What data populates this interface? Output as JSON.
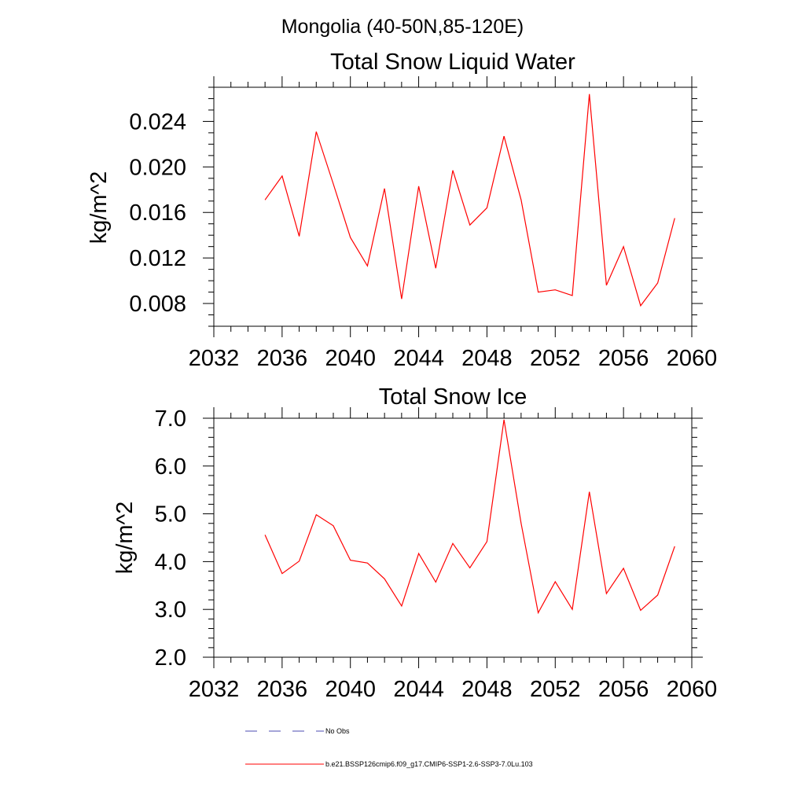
{
  "suptitle": "Mongolia (40-50N,85-120E)",
  "colors": {
    "model": "#ff0000",
    "obs": "#4b4bb0",
    "axis": "#000000"
  },
  "legend": {
    "items": [
      {
        "label": "No Obs",
        "style": "dashed",
        "color": "#4b4bb0"
      },
      {
        "label": "b.e21.BSSP126cmip6.f09_g17.CMIP6-SSP1-2.6-SSP3-7.0Lu.103",
        "style": "solid",
        "color": "#ff0000"
      }
    ]
  },
  "chart_data": [
    {
      "type": "line",
      "title": "Total Snow Liquid Water",
      "xlabel": "",
      "ylabel": "kg/m^2",
      "xlim": [
        2032,
        2060
      ],
      "ylim": [
        0.006,
        0.027
      ],
      "xticks": [
        "2032",
        "2036",
        "2040",
        "2044",
        "2048",
        "2052",
        "2056",
        "2060"
      ],
      "yticks": [
        "0.008",
        "0.012",
        "0.016",
        "0.020",
        "0.024"
      ],
      "x": [
        2035,
        2036,
        2037,
        2038,
        2039,
        2040,
        2041,
        2042,
        2043,
        2044,
        2045,
        2046,
        2047,
        2048,
        2049,
        2050,
        2051,
        2052,
        2053,
        2054,
        2055,
        2056,
        2057,
        2058,
        2059
      ],
      "series": [
        {
          "values": [
            0.0171,
            0.0192,
            0.0139,
            0.0231,
            0.0185,
            0.0138,
            0.0113,
            0.0181,
            0.0084,
            0.0183,
            0.0111,
            0.0197,
            0.0149,
            0.0164,
            0.0227,
            0.0171,
            0.009,
            0.0092,
            0.0087,
            0.0264,
            0.0096,
            0.013,
            0.0078,
            0.0098,
            0.0155
          ]
        }
      ]
    },
    {
      "type": "line",
      "title": "Total Snow Ice",
      "xlabel": "",
      "ylabel": "kg/m^2",
      "xlim": [
        2032,
        2060
      ],
      "ylim": [
        2.0,
        7.0
      ],
      "xticks": [
        "2032",
        "2036",
        "2040",
        "2044",
        "2048",
        "2052",
        "2056",
        "2060"
      ],
      "yticks": [
        "2.0",
        "3.0",
        "4.0",
        "5.0",
        "6.0",
        "7.0"
      ],
      "x": [
        2035,
        2036,
        2037,
        2038,
        2039,
        2040,
        2041,
        2042,
        2043,
        2044,
        2045,
        2046,
        2047,
        2048,
        2049,
        2050,
        2051,
        2052,
        2053,
        2054,
        2055,
        2056,
        2057,
        2058,
        2059
      ],
      "series": [
        {
          "values": [
            4.56,
            3.75,
            4.01,
            4.98,
            4.75,
            4.03,
            3.97,
            3.64,
            3.07,
            4.17,
            3.57,
            4.38,
            3.87,
            4.42,
            6.97,
            4.8,
            2.93,
            3.58,
            3.0,
            5.46,
            3.33,
            3.86,
            2.98,
            3.3,
            4.32
          ]
        }
      ]
    }
  ]
}
